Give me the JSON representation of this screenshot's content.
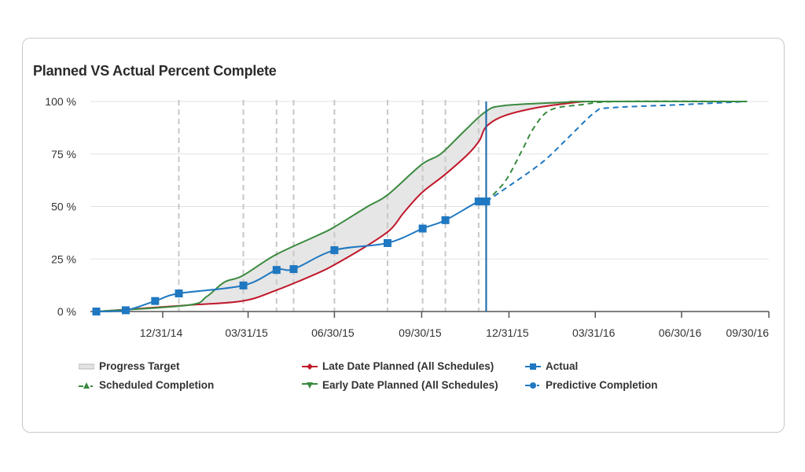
{
  "chart_data": {
    "type": "line",
    "title": "Planned VS Actual Percent Complete",
    "xlabel": "",
    "ylabel": "",
    "x_type": "date",
    "xlim": [
      "2014-10-22",
      "2016-09-30"
    ],
    "ylim": [
      0,
      100
    ],
    "x_ticks": [
      "2014-12-31",
      "2015-03-31",
      "2015-06-30",
      "2015-09-30",
      "2015-12-31",
      "2016-03-31",
      "2016-06-30",
      "2016-09-30"
    ],
    "x_tick_labels": [
      "12/31/14",
      "03/31/15",
      "06/30/15",
      "09/30/15",
      "12/31/15",
      "03/31/16",
      "06/30/16",
      "09/30/16"
    ],
    "y_ticks": [
      0,
      25,
      50,
      75,
      100
    ],
    "y_tick_labels": [
      "0 %",
      "25 %",
      "50 %",
      "75 %",
      "100 %"
    ],
    "grid": "horizontal",
    "legend_position": "bottom",
    "status_date": "2015-12-07",
    "reference_dates": [
      "2015-01-17",
      "2015-03-26",
      "2015-04-30",
      "2015-05-18",
      "2015-06-30",
      "2015-08-25",
      "2015-10-01",
      "2015-10-25",
      "2015-11-29"
    ],
    "colors": {
      "early": "#3a8a3f",
      "late": "#c0182a",
      "actual": "#1f78c1",
      "band": "#e6e6e6",
      "reference": "#c8c8c8",
      "status": "#1565a8"
    },
    "series": [
      {
        "name": "Early Date Planned (All Schedules)",
        "key": "early",
        "style": "solid",
        "x": [
          "2014-10-22",
          "2015-01-26",
          "2015-02-15",
          "2015-03-06",
          "2015-03-25",
          "2015-04-29",
          "2015-06-11",
          "2015-06-29",
          "2015-08-04",
          "2015-08-25",
          "2015-09-30",
          "2015-10-20",
          "2015-11-13",
          "2015-12-06",
          "2015-12-25",
          "2016-02-27",
          "2016-03-23",
          "2016-09-07"
        ],
        "y": [
          0,
          3,
          7,
          14,
          17,
          27,
          36,
          40,
          50,
          55.5,
          70,
          75,
          85.5,
          95,
          98,
          99.6,
          100,
          100
        ]
      },
      {
        "name": "Late Date Planned (All Schedules)",
        "key": "late",
        "style": "solid",
        "x": [
          "2014-10-22",
          "2015-01-26",
          "2015-03-25",
          "2015-04-29",
          "2015-06-11",
          "2015-06-29",
          "2015-08-04",
          "2015-08-28",
          "2015-09-11",
          "2015-09-30",
          "2015-10-24",
          "2015-11-18",
          "2015-11-30",
          "2015-12-07",
          "2015-12-25",
          "2016-01-29",
          "2016-03-11",
          "2016-03-25"
        ],
        "y": [
          0,
          3,
          5,
          10,
          18,
          22,
          31.5,
          39,
          47,
          56.5,
          65,
          75,
          81.5,
          88,
          93,
          97,
          99.6,
          100
        ]
      },
      {
        "name": "Actual",
        "key": "actual",
        "style": "solid-markers",
        "x": [
          "2014-10-22",
          "2014-11-22",
          "2014-12-23",
          "2015-01-17",
          "2015-03-26",
          "2015-04-30",
          "2015-05-18",
          "2015-06-30",
          "2015-08-25",
          "2015-10-01",
          "2015-10-25",
          "2015-11-29",
          "2015-12-07"
        ],
        "y": [
          0,
          0.6,
          5,
          8.6,
          12.4,
          19.8,
          20.2,
          29.2,
          32.6,
          39.5,
          43.5,
          52.4,
          52.4
        ]
      },
      {
        "name": "Scheduled Completion",
        "key": "scheduled",
        "style": "dashed",
        "x": [
          "2015-12-07",
          "2015-12-27",
          "2016-01-13",
          "2016-01-27",
          "2016-02-13",
          "2016-03-17",
          "2016-04-25",
          "2016-09-07"
        ],
        "y": [
          52.4,
          62,
          76,
          88,
          96,
          98.5,
          100,
          100
        ]
      },
      {
        "name": "Predictive Completion",
        "key": "predictive",
        "style": "dashed",
        "x": [
          "2015-12-07",
          "2015-12-27",
          "2016-02-04",
          "2016-03-03",
          "2016-03-31",
          "2016-04-16",
          "2016-06-30",
          "2016-09-07"
        ],
        "y": [
          52.4,
          58.5,
          71,
          83,
          95,
          97,
          98.5,
          100
        ]
      }
    ],
    "legend": [
      {
        "label": "Progress Target"
      },
      {
        "label": "Late Date Planned (All Schedules)"
      },
      {
        "label": "Actual"
      },
      {
        "label": "Scheduled Completion"
      },
      {
        "label": "Early Date Planned (All Schedules)"
      },
      {
        "label": "Predictive Completion"
      }
    ]
  }
}
